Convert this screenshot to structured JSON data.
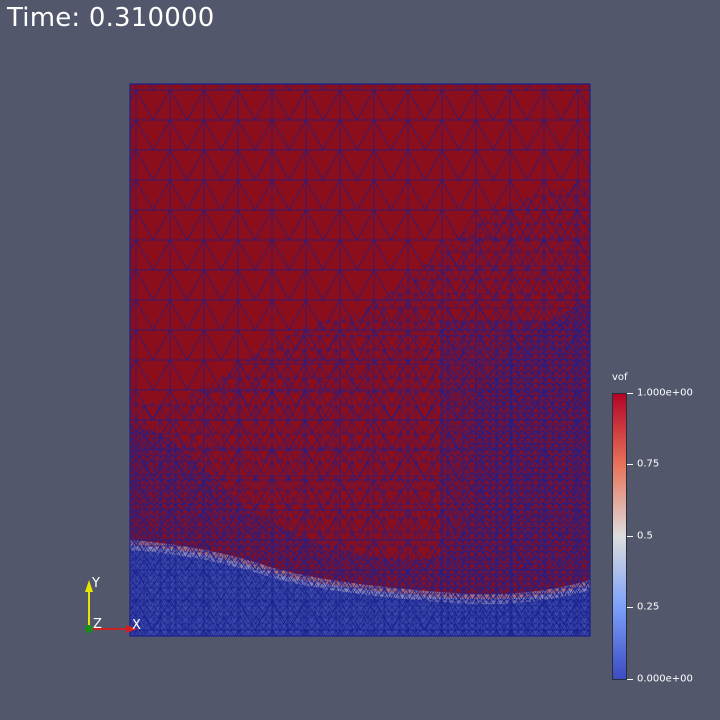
{
  "time_label": "Time: 0.310000",
  "colorbar": {
    "title": "vof",
    "min": 0.0,
    "max": 1.0,
    "ticks": [
      "1.000e+00",
      "0.75",
      "0.5",
      "0.25",
      "0.000e+00"
    ],
    "colors": {
      "high": "#b40426",
      "mid": "#dddddd",
      "low": "#3b4cc0"
    }
  },
  "axes": {
    "x": "X",
    "y": "Y",
    "z": "Z"
  },
  "colors": {
    "background": "#52576b",
    "fluid_high": "#8b0e1c",
    "fluid_low": "#3a4aa8",
    "mesh_edge": "#1a1f8f"
  }
}
